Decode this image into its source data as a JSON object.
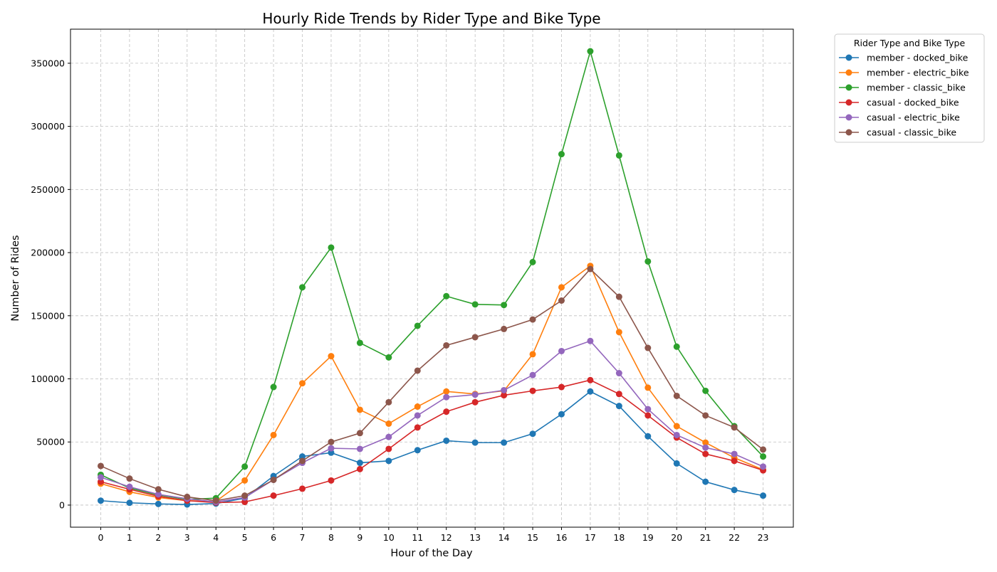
{
  "chart_data": {
    "type": "line",
    "title": "Hourly Ride Trends by Rider Type and Bike Type",
    "xlabel": "Hour of the Day",
    "ylabel": "Number of Rides",
    "x": [
      0,
      1,
      2,
      3,
      4,
      5,
      6,
      7,
      8,
      9,
      10,
      11,
      12,
      13,
      14,
      15,
      16,
      17,
      18,
      19,
      20,
      21,
      22,
      23
    ],
    "xlim": [
      -1.05,
      24.05
    ],
    "ylim": [
      -17500,
      377000
    ],
    "yticks": [
      0,
      50000,
      100000,
      150000,
      200000,
      250000,
      300000,
      350000
    ],
    "grid": true,
    "legend": {
      "title": "Rider Type and Bike Type",
      "placement": "outside-top-right"
    },
    "series": [
      {
        "name": "member - docked_bike",
        "color": "#1f77b4",
        "values": [
          3500,
          1800,
          900,
          500,
          1200,
          5500,
          23000,
          38500,
          41500,
          33500,
          35000,
          43500,
          51000,
          49500,
          49500,
          56500,
          72000,
          90000,
          78500,
          54500,
          33000,
          18500,
          12000,
          7500
        ]
      },
      {
        "name": "member - electric_bike",
        "color": "#ff7f0e",
        "values": [
          17000,
          10500,
          6000,
          3500,
          3000,
          19500,
          55500,
          96500,
          118000,
          75500,
          64500,
          78000,
          90000,
          88000,
          90500,
          119500,
          172500,
          189500,
          137000,
          93000,
          62500,
          49500,
          37500,
          28000
        ]
      },
      {
        "name": "member - classic_bike",
        "color": "#2ca02c",
        "values": [
          24000,
          13500,
          8000,
          4500,
          5500,
          30500,
          93500,
          172500,
          204000,
          128500,
          117000,
          142000,
          165500,
          159000,
          158500,
          192500,
          278000,
          359500,
          277000,
          193000,
          125500,
          90500,
          62500,
          38500
        ]
      },
      {
        "name": "casual - docked_bike",
        "color": "#d62728",
        "values": [
          18500,
          12500,
          7000,
          3500,
          2000,
          2500,
          7500,
          13000,
          19500,
          28500,
          44500,
          61500,
          74000,
          81500,
          87000,
          90500,
          93500,
          99000,
          88000,
          71000,
          53500,
          40500,
          35000,
          27500
        ]
      },
      {
        "name": "casual - electric_bike",
        "color": "#9467bd",
        "values": [
          22000,
          14500,
          8500,
          5000,
          2500,
          6000,
          20000,
          33500,
          45000,
          44500,
          54000,
          71000,
          85500,
          87500,
          91000,
          103000,
          122000,
          130000,
          104500,
          76000,
          55500,
          45500,
          40500,
          30500
        ]
      },
      {
        "name": "casual - classic_bike",
        "color": "#8c564b",
        "values": [
          31000,
          21000,
          12500,
          6500,
          3500,
          7500,
          20000,
          35000,
          50000,
          57000,
          81500,
          106500,
          126500,
          133000,
          139500,
          147000,
          162000,
          187000,
          165000,
          124500,
          86500,
          71000,
          61500,
          44000
        ]
      }
    ]
  }
}
